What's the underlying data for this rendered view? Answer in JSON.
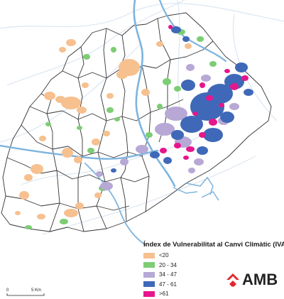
{
  "legend": {
    "title": "Índex de Vulnerabilitat al Canvi Climàtic (IVAC)",
    "items": [
      {
        "label": "<20",
        "color": "#f6c08f"
      },
      {
        "label": "20 - 34",
        "color": "#7ccd73"
      },
      {
        "label": "34 - 47",
        "color": "#b7a8d5"
      },
      {
        "label": "47 - 61",
        "color": "#3f69b8"
      },
      {
        "label": ">61",
        "color": "#e6168c"
      }
    ]
  },
  "scale": {
    "zero": "0",
    "distance": "5 Km"
  },
  "logo": {
    "text": "AMB",
    "icon": "amb-logo-icon",
    "color": "#e3262b"
  },
  "map": {
    "water_color": "#7db4de",
    "boundary_color": "#333333",
    "road_color": "#dbe6f2"
  }
}
